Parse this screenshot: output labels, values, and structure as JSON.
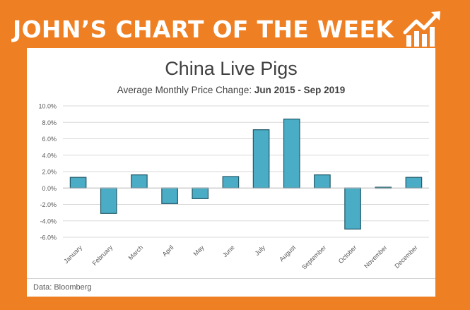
{
  "header": {
    "title": "JOHN’S CHART OF THE WEEK",
    "icon": "trending-up-chart-icon",
    "accent_color": "#ee7f22"
  },
  "source": "Data: Bloomberg",
  "chart_data": {
    "type": "bar",
    "title": "China Live Pigs",
    "subtitle_prefix": "Average Monthly Price Change: ",
    "subtitle_bold": "Jun 2015 - Sep 2019",
    "xlabel": "",
    "ylabel": "",
    "categories": [
      "January",
      "February",
      "March",
      "April",
      "May",
      "June",
      "July",
      "August",
      "September",
      "October",
      "November",
      "December"
    ],
    "values": [
      1.3,
      -3.1,
      1.6,
      -1.9,
      -1.3,
      1.4,
      7.1,
      8.4,
      1.6,
      -5.0,
      0.1,
      1.3
    ],
    "ylim": [
      -6.0,
      10.0
    ],
    "yticks": [
      "10.0%",
      "8.0%",
      "6.0%",
      "4.0%",
      "2.0%",
      "0.0%",
      "-2.0%",
      "-4.0%",
      "-6.0%"
    ],
    "ytick_values": [
      10,
      8,
      6,
      4,
      2,
      0,
      -2,
      -4,
      -6
    ],
    "grid": true,
    "legend": "none",
    "bar_color": "#4bacc6",
    "bar_edge_color": "#215968"
  }
}
